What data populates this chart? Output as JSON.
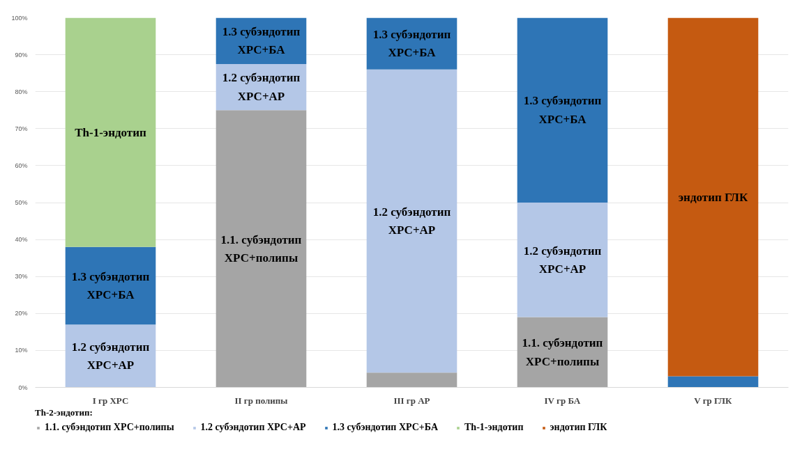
{
  "chart_data": {
    "type": "bar",
    "stacked": true,
    "categories": [
      "I гр ХРС",
      "II гр полипы",
      "III гр АР",
      "IV гр БА",
      "V гр ГЛК"
    ],
    "series": [
      {
        "name": "1.1. субэндотип ХРС+полипы",
        "color": "#a5a5a5",
        "values": [
          0,
          75,
          4,
          19,
          0
        ]
      },
      {
        "name": "1.2 субэндотип ХРС+АР",
        "color": "#b4c7e7",
        "values": [
          17,
          12.5,
          82,
          31,
          0
        ]
      },
      {
        "name": "1.3 субэндотип ХРС+БА",
        "color": "#2e75b6",
        "values": [
          21,
          12.5,
          14,
          50,
          3
        ]
      },
      {
        "name": "Th-1-эндотип",
        "color": "#a9d18e",
        "values": [
          62,
          0,
          0,
          0,
          0
        ]
      },
      {
        "name": "эндотип ГЛК",
        "color": "#c55a11",
        "values": [
          0,
          0,
          0,
          0,
          97
        ]
      }
    ],
    "ylim": [
      0,
      100
    ],
    "yticks": [
      {
        "value": 0,
        "label": "0%"
      },
      {
        "value": 10,
        "label": "10%"
      },
      {
        "value": 20,
        "label": "20%"
      },
      {
        "value": 30,
        "label": "30%"
      },
      {
        "value": 40,
        "label": "40%"
      },
      {
        "value": 50,
        "label": "50%"
      },
      {
        "value": 60,
        "label": "60%"
      },
      {
        "value": 70,
        "label": "70%"
      },
      {
        "value": 80,
        "label": "80%"
      },
      {
        "value": 90,
        "label": "90%"
      },
      {
        "value": 100,
        "label": "100%"
      }
    ],
    "grid": "y",
    "legend": "bottom",
    "legend_title": "Th-2-эндотип:",
    "annotations": [
      "Th-1-эндотип",
      "1.3 субэндотип\nХРС+БА",
      "1.2 субэндотип\nХРС+АР",
      "1.3 субэндотип\nХРС+БА",
      "1.2 субэндотип\nХРС+АР",
      "1.1. субэндотип\nХРС+полипы",
      "1.3 субэндотип\nХРС+БА",
      "1.2 субэндотип\nХРС+АР",
      "1.3 субэндотип\nХРС+БА",
      "1.2 субэндотип\nХРС+АР",
      "1.1. субэндотип\nХРС+полипы",
      "эндотип ГЛК"
    ]
  }
}
